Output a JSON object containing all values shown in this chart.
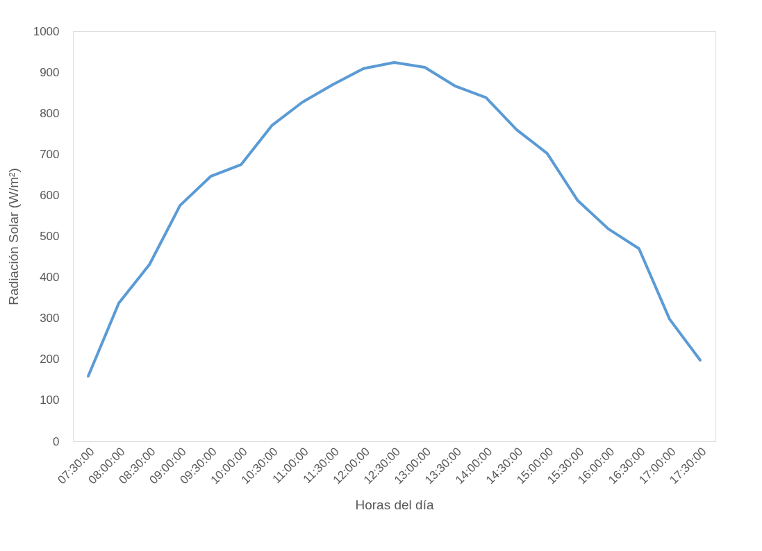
{
  "chart_data": {
    "type": "line",
    "xlabel": "Horas del día",
    "ylabel": "Radiación Solar (W/m²)",
    "categories": [
      "07:30:00",
      "08:00:00",
      "08:30:00",
      "09:00:00",
      "09:30:00",
      "10:00:00",
      "10:30:00",
      "11:00:00",
      "11:30:00",
      "12:00:00",
      "12:30:00",
      "13:00:00",
      "13:30:00",
      "14:00:00",
      "14:30:00",
      "15:00:00",
      "15:30:00",
      "16:00:00",
      "16:30:00",
      "17:00:00",
      "17:30:00"
    ],
    "series": [
      {
        "color": "#5b9bd5",
        "values": [
          159,
          337,
          431,
          575,
          646,
          675,
          770,
          827,
          870,
          909,
          924,
          912,
          866,
          838,
          760,
          702,
          587,
          518,
          470,
          298,
          198
        ]
      }
    ],
    "ylim": [
      0,
      1000
    ],
    "yticks": [
      0,
      100,
      200,
      300,
      400,
      500,
      600,
      700,
      800,
      900,
      1000
    ],
    "grid": false,
    "legend": false,
    "marker": "none",
    "line_style": "solid"
  }
}
